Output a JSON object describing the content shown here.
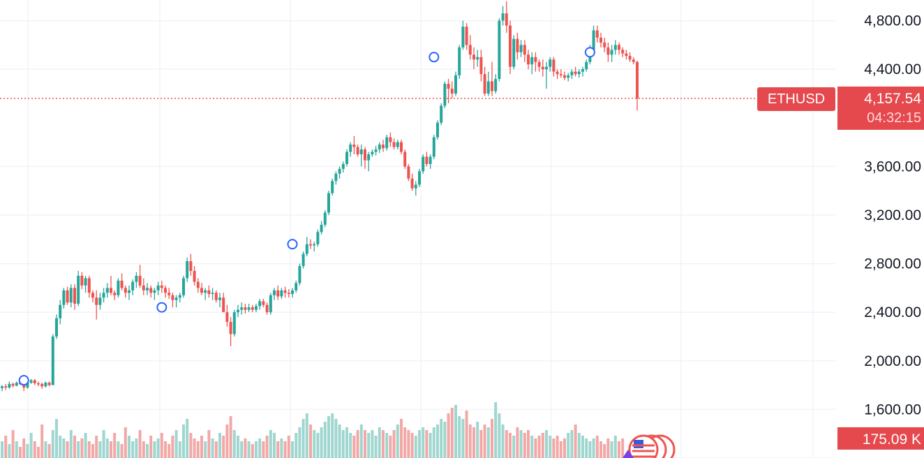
{
  "chart_data": {
    "type": "candlestick",
    "symbol": "ETHUSD",
    "last_price": "4,157.54",
    "countdown": "04:32:15",
    "volume_label": "175.09 K",
    "y_ticks": [
      "4,800.00",
      "4,400.00",
      "3,600.00",
      "3,200.00",
      "2,800.00",
      "2,400.00",
      "2,000.00",
      "1,600.00"
    ],
    "y_tick_values": [
      4800,
      4400,
      3600,
      3200,
      2800,
      2400,
      2000,
      1600
    ],
    "ylim": [
      1200,
      4970
    ],
    "grid": true,
    "colors": {
      "up": "#26a69a",
      "down": "#ef5350",
      "up_volume": "#9fd6cf",
      "down_volume": "#f2a8a6",
      "marker": "#2962ff",
      "grid": "#f0f3fa"
    },
    "ohlc": [
      [
        1775,
        1800,
        1750,
        1790
      ],
      [
        1790,
        1810,
        1760,
        1780
      ],
      [
        1780,
        1830,
        1770,
        1810
      ],
      [
        1810,
        1820,
        1780,
        1795
      ],
      [
        1795,
        1830,
        1790,
        1820
      ],
      [
        1820,
        1840,
        1800,
        1810
      ],
      [
        1810,
        1830,
        1750,
        1780
      ],
      [
        1780,
        1830,
        1770,
        1820
      ],
      [
        1820,
        1850,
        1810,
        1840
      ],
      [
        1840,
        1850,
        1800,
        1815
      ],
      [
        1815,
        1830,
        1790,
        1810
      ],
      [
        1810,
        1820,
        1770,
        1790
      ],
      [
        1790,
        1830,
        1780,
        1820
      ],
      [
        1820,
        1830,
        1790,
        1800
      ],
      [
        1800,
        2220,
        1800,
        2200
      ],
      [
        2200,
        2380,
        2180,
        2350
      ],
      [
        2350,
        2500,
        2300,
        2460
      ],
      [
        2460,
        2600,
        2430,
        2580
      ],
      [
        2580,
        2610,
        2460,
        2480
      ],
      [
        2480,
        2630,
        2440,
        2600
      ],
      [
        2600,
        2630,
        2420,
        2470
      ],
      [
        2470,
        2740,
        2450,
        2700
      ],
      [
        2700,
        2730,
        2590,
        2620
      ],
      [
        2620,
        2700,
        2560,
        2680
      ],
      [
        2680,
        2700,
        2520,
        2560
      ],
      [
        2560,
        2580,
        2480,
        2520
      ],
      [
        2520,
        2580,
        2340,
        2460
      ],
      [
        2460,
        2560,
        2420,
        2520
      ],
      [
        2520,
        2600,
        2480,
        2560
      ],
      [
        2560,
        2640,
        2520,
        2600
      ],
      [
        2600,
        2700,
        2540,
        2560
      ],
      [
        2560,
        2580,
        2500,
        2540
      ],
      [
        2540,
        2680,
        2520,
        2660
      ],
      [
        2660,
        2720,
        2580,
        2600
      ],
      [
        2600,
        2620,
        2520,
        2560
      ],
      [
        2560,
        2620,
        2500,
        2580
      ],
      [
        2580,
        2670,
        2540,
        2650
      ],
      [
        2650,
        2730,
        2600,
        2700
      ],
      [
        2700,
        2790,
        2600,
        2620
      ],
      [
        2620,
        2680,
        2540,
        2580
      ],
      [
        2580,
        2640,
        2540,
        2600
      ],
      [
        2600,
        2620,
        2520,
        2560
      ],
      [
        2560,
        2600,
        2500,
        2580
      ],
      [
        2580,
        2650,
        2540,
        2620
      ],
      [
        2620,
        2660,
        2560,
        2600
      ],
      [
        2600,
        2620,
        2520,
        2560
      ],
      [
        2560,
        2600,
        2510,
        2540
      ],
      [
        2540,
        2560,
        2440,
        2500
      ],
      [
        2500,
        2540,
        2440,
        2520
      ],
      [
        2520,
        2560,
        2480,
        2540
      ],
      [
        2540,
        2700,
        2520,
        2680
      ],
      [
        2680,
        2850,
        2650,
        2820
      ],
      [
        2820,
        2880,
        2700,
        2740
      ],
      [
        2740,
        2780,
        2620,
        2650
      ],
      [
        2650,
        2680,
        2560,
        2600
      ],
      [
        2600,
        2640,
        2540,
        2560
      ],
      [
        2560,
        2600,
        2500,
        2580
      ],
      [
        2580,
        2620,
        2520,
        2550
      ],
      [
        2550,
        2600,
        2500,
        2560
      ],
      [
        2560,
        2580,
        2480,
        2500
      ],
      [
        2500,
        2560,
        2440,
        2520
      ],
      [
        2520,
        2560,
        2420,
        2400
      ],
      [
        2400,
        2460,
        2280,
        2320
      ],
      [
        2320,
        2360,
        2120,
        2220
      ],
      [
        2220,
        2420,
        2200,
        2400
      ],
      [
        2400,
        2460,
        2360,
        2420
      ],
      [
        2420,
        2480,
        2380,
        2440
      ],
      [
        2440,
        2470,
        2390,
        2420
      ],
      [
        2420,
        2470,
        2400,
        2440
      ],
      [
        2440,
        2460,
        2400,
        2420
      ],
      [
        2420,
        2470,
        2400,
        2450
      ],
      [
        2450,
        2510,
        2420,
        2490
      ],
      [
        2490,
        2510,
        2440,
        2460
      ],
      [
        2460,
        2480,
        2380,
        2400
      ],
      [
        2400,
        2560,
        2380,
        2540
      ],
      [
        2540,
        2600,
        2500,
        2580
      ],
      [
        2580,
        2620,
        2500,
        2530
      ],
      [
        2530,
        2600,
        2510,
        2580
      ],
      [
        2580,
        2610,
        2520,
        2560
      ],
      [
        2560,
        2590,
        2520,
        2550
      ],
      [
        2550,
        2600,
        2520,
        2580
      ],
      [
        2580,
        2660,
        2560,
        2640
      ],
      [
        2640,
        2800,
        2620,
        2780
      ],
      [
        2780,
        2900,
        2760,
        2880
      ],
      [
        2880,
        3020,
        2860,
        2960
      ],
      [
        2960,
        3000,
        2920,
        2950
      ],
      [
        2950,
        2980,
        2900,
        2960
      ],
      [
        2960,
        3080,
        2940,
        3060
      ],
      [
        3060,
        3150,
        3040,
        3120
      ],
      [
        3120,
        3240,
        3100,
        3220
      ],
      [
        3220,
        3400,
        3200,
        3380
      ],
      [
        3380,
        3500,
        3360,
        3480
      ],
      [
        3480,
        3560,
        3450,
        3540
      ],
      [
        3540,
        3600,
        3500,
        3580
      ],
      [
        3580,
        3640,
        3550,
        3620
      ],
      [
        3620,
        3740,
        3600,
        3720
      ],
      [
        3720,
        3800,
        3680,
        3780
      ],
      [
        3780,
        3850,
        3700,
        3760
      ],
      [
        3760,
        3780,
        3680,
        3700
      ],
      [
        3700,
        3780,
        3600,
        3740
      ],
      [
        3740,
        3760,
        3580,
        3650
      ],
      [
        3650,
        3720,
        3560,
        3700
      ],
      [
        3700,
        3740,
        3680,
        3720
      ],
      [
        3720,
        3770,
        3690,
        3740
      ],
      [
        3740,
        3800,
        3710,
        3780
      ],
      [
        3780,
        3820,
        3720,
        3750
      ],
      [
        3750,
        3860,
        3730,
        3840
      ],
      [
        3840,
        3880,
        3760,
        3800
      ],
      [
        3800,
        3830,
        3740,
        3760
      ],
      [
        3760,
        3820,
        3740,
        3800
      ],
      [
        3800,
        3820,
        3700,
        3720
      ],
      [
        3720,
        3740,
        3580,
        3600
      ],
      [
        3600,
        3620,
        3480,
        3500
      ],
      [
        3500,
        3540,
        3400,
        3420
      ],
      [
        3420,
        3480,
        3360,
        3450
      ],
      [
        3450,
        3580,
        3430,
        3560
      ],
      [
        3560,
        3700,
        3540,
        3680
      ],
      [
        3680,
        3720,
        3600,
        3620
      ],
      [
        3620,
        3700,
        3580,
        3680
      ],
      [
        3680,
        3860,
        3660,
        3840
      ],
      [
        3840,
        3980,
        3820,
        3960
      ],
      [
        3960,
        4120,
        3940,
        4100
      ],
      [
        4100,
        4300,
        4080,
        4280
      ],
      [
        4280,
        4320,
        4120,
        4240
      ],
      [
        4240,
        4300,
        4160,
        4200
      ],
      [
        4200,
        4380,
        4180,
        4350
      ],
      [
        4350,
        4600,
        4320,
        4580
      ],
      [
        4580,
        4800,
        4560,
        4750
      ],
      [
        4750,
        4780,
        4560,
        4600
      ],
      [
        4600,
        4680,
        4480,
        4520
      ],
      [
        4520,
        4580,
        4400,
        4480
      ],
      [
        4480,
        4560,
        4420,
        4500
      ],
      [
        4500,
        4560,
        4300,
        4360
      ],
      [
        4360,
        4420,
        4180,
        4200
      ],
      [
        4200,
        4380,
        4180,
        4300
      ],
      [
        4300,
        4460,
        4180,
        4220
      ],
      [
        4220,
        4360,
        4200,
        4320
      ],
      [
        4320,
        4820,
        4300,
        4800
      ],
      [
        4800,
        4920,
        4760,
        4860
      ],
      [
        4860,
        4960,
        4700,
        4760
      ],
      [
        4760,
        4800,
        4360,
        4420
      ],
      [
        4420,
        4680,
        4400,
        4650
      ],
      [
        4650,
        4700,
        4480,
        4540
      ],
      [
        4540,
        4640,
        4500,
        4600
      ],
      [
        4600,
        4640,
        4460,
        4520
      ],
      [
        4520,
        4560,
        4400,
        4440
      ],
      [
        4440,
        4540,
        4360,
        4500
      ],
      [
        4500,
        4540,
        4380,
        4460
      ],
      [
        4460,
        4480,
        4380,
        4420
      ],
      [
        4420,
        4480,
        4340,
        4400
      ],
      [
        4400,
        4460,
        4240,
        4420
      ],
      [
        4420,
        4500,
        4380,
        4480
      ],
      [
        4480,
        4500,
        4340,
        4380
      ],
      [
        4380,
        4400,
        4320,
        4360
      ],
      [
        4360,
        4400,
        4330,
        4350
      ],
      [
        4350,
        4380,
        4310,
        4330
      ],
      [
        4330,
        4370,
        4300,
        4350
      ],
      [
        4350,
        4400,
        4320,
        4380
      ],
      [
        4380,
        4420,
        4340,
        4360
      ],
      [
        4360,
        4400,
        4330,
        4380
      ],
      [
        4380,
        4420,
        4340,
        4400
      ],
      [
        4400,
        4480,
        4380,
        4460
      ],
      [
        4460,
        4600,
        4440,
        4560
      ],
      [
        4560,
        4760,
        4540,
        4720
      ],
      [
        4720,
        4760,
        4620,
        4660
      ],
      [
        4660,
        4700,
        4580,
        4620
      ],
      [
        4620,
        4660,
        4540,
        4580
      ],
      [
        4580,
        4620,
        4460,
        4520
      ],
      [
        4520,
        4600,
        4460,
        4560
      ],
      [
        4560,
        4640,
        4520,
        4600
      ],
      [
        4600,
        4620,
        4520,
        4560
      ],
      [
        4560,
        4580,
        4500,
        4530
      ],
      [
        4530,
        4560,
        4480,
        4510
      ],
      [
        4510,
        4540,
        4460,
        4480
      ],
      [
        4480,
        4500,
        4440,
        4460
      ],
      [
        4460,
        4470,
        4060,
        4160
      ]
    ],
    "volume_levels": [
      0.3,
      0.4,
      0.25,
      0.5,
      0.3,
      0.2,
      0.35,
      0.25,
      0.45,
      0.3,
      0.2,
      0.6,
      0.3,
      0.25,
      0.5,
      0.7,
      0.4,
      0.35,
      0.3,
      0.5,
      0.4,
      0.3,
      0.35,
      0.45,
      0.3,
      0.25,
      0.4,
      0.3,
      0.5,
      0.35,
      0.3,
      0.45,
      0.3,
      0.25,
      0.55,
      0.4,
      0.3,
      0.35,
      0.5,
      0.3,
      0.25,
      0.4,
      0.3,
      0.35,
      0.45,
      0.3,
      0.25,
      0.4,
      0.5,
      0.3,
      0.6,
      0.7,
      0.45,
      0.35,
      0.3,
      0.4,
      0.3,
      0.5,
      0.35,
      0.3,
      0.45,
      0.4,
      0.6,
      0.75,
      0.5,
      0.4,
      0.3,
      0.35,
      0.3,
      0.25,
      0.3,
      0.35,
      0.3,
      0.4,
      0.5,
      0.45,
      0.3,
      0.35,
      0.3,
      0.4,
      0.3,
      0.45,
      0.55,
      0.7,
      0.8,
      0.6,
      0.5,
      0.45,
      0.55,
      0.65,
      0.75,
      0.8,
      0.7,
      0.6,
      0.5,
      0.55,
      0.45,
      0.4,
      0.5,
      0.6,
      0.5,
      0.45,
      0.5,
      0.4,
      0.55,
      0.5,
      0.45,
      0.4,
      0.5,
      0.6,
      0.7,
      0.55,
      0.5,
      0.45,
      0.4,
      0.5,
      0.55,
      0.5,
      0.45,
      0.55,
      0.6,
      0.7,
      0.65,
      0.8,
      0.9,
      0.95,
      0.75,
      0.7,
      0.85,
      0.6,
      0.55,
      0.65,
      0.5,
      0.6,
      0.55,
      0.7,
      1.0,
      0.8,
      0.6,
      0.5,
      0.45,
      0.4,
      0.55,
      0.5,
      0.45,
      0.5,
      0.4,
      0.35,
      0.4,
      0.45,
      0.5,
      0.4,
      0.35,
      0.4,
      0.3,
      0.35,
      0.45,
      0.5,
      0.6,
      0.45,
      0.4,
      0.35,
      0.3,
      0.35,
      0.4,
      0.3,
      0.25,
      0.35,
      0.3,
      0.4,
      0.3,
      0.35
    ],
    "event_markers": [
      {
        "index": 6,
        "price": 1840
      },
      {
        "index": 44,
        "price": 2440
      },
      {
        "index": 80,
        "price": 2960
      },
      {
        "index": 119,
        "price": 4500
      },
      {
        "index": 162,
        "price": 4540
      }
    ]
  }
}
